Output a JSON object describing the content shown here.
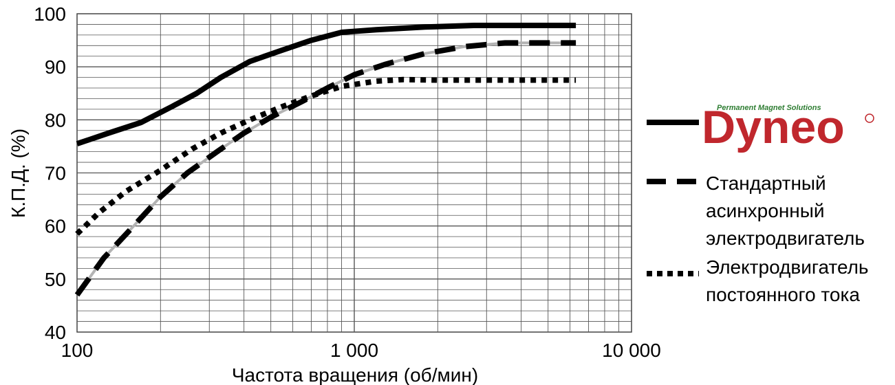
{
  "chart_data": {
    "type": "line",
    "xlabel": "Частота вращения (об/мин)",
    "ylabel": "К.П.Д. (%)",
    "x_scale": "log",
    "xlim": [
      100,
      10000
    ],
    "ylim": [
      40,
      100
    ],
    "x_ticks": [
      {
        "value": 100,
        "label": "100"
      },
      {
        "value": 1000,
        "label": "1 000"
      },
      {
        "value": 10000,
        "label": "10 000"
      }
    ],
    "y_ticks": [
      {
        "value": 40,
        "label": "40"
      },
      {
        "value": 50,
        "label": "50"
      },
      {
        "value": 60,
        "label": "60"
      },
      {
        "value": 70,
        "label": "70"
      },
      {
        "value": 80,
        "label": "80"
      },
      {
        "value": 90,
        "label": "90"
      },
      {
        "value": 100,
        "label": "100"
      }
    ],
    "grid": true,
    "legend_position": "right",
    "series": [
      {
        "name": "Dyneo",
        "style": "solid",
        "color": "#000000",
        "points": [
          [
            100,
            75.5
          ],
          [
            130,
            77.5
          ],
          [
            170,
            79.5
          ],
          [
            220,
            82.5
          ],
          [
            270,
            85
          ],
          [
            330,
            88
          ],
          [
            420,
            91
          ],
          [
            540,
            93
          ],
          [
            700,
            95
          ],
          [
            900,
            96.5
          ],
          [
            1200,
            97
          ],
          [
            1800,
            97.5
          ],
          [
            2700,
            97.8
          ],
          [
            6300,
            97.8
          ]
        ]
      },
      {
        "name": "Стандартный асинхронный электродвигатель",
        "style": "dashed",
        "color": "#000000",
        "points": [
          [
            100,
            47
          ],
          [
            125,
            54
          ],
          [
            160,
            60
          ],
          [
            200,
            65.5
          ],
          [
            250,
            70
          ],
          [
            320,
            74
          ],
          [
            400,
            77.5
          ],
          [
            500,
            80.5
          ],
          [
            650,
            83.5
          ],
          [
            800,
            86
          ],
          [
            1000,
            88.5
          ],
          [
            1300,
            90.5
          ],
          [
            1800,
            92.5
          ],
          [
            2500,
            93.8
          ],
          [
            3500,
            94.5
          ],
          [
            6300,
            94.5
          ]
        ]
      },
      {
        "name": "Электродвигатель постоянного тока",
        "style": "dotted",
        "color": "#000000",
        "points": [
          [
            100,
            58.5
          ],
          [
            120,
            62.5
          ],
          [
            150,
            66.5
          ],
          [
            200,
            70.5
          ],
          [
            260,
            74.5
          ],
          [
            330,
            77.5
          ],
          [
            420,
            80
          ],
          [
            550,
            82.5
          ],
          [
            700,
            84.5
          ],
          [
            900,
            86.3
          ],
          [
            1200,
            87.3
          ],
          [
            1500,
            87.6
          ],
          [
            2000,
            87.5
          ],
          [
            6300,
            87.5
          ]
        ]
      }
    ]
  },
  "legend": {
    "logo": {
      "brand": "Dyneo",
      "tagline": "Permanent Magnet Solutions",
      "mark": "®",
      "color": "#c0272d"
    },
    "entries": [
      {
        "id": "dyneo",
        "style": "solid",
        "lines": []
      },
      {
        "id": "standard",
        "style": "dashed",
        "lines": [
          "Стандартный",
          "асинхронный",
          "электродвигатель"
        ]
      },
      {
        "id": "dc",
        "style": "dotted",
        "lines": [
          "Электродвигатель",
          "постоянного тока"
        ]
      }
    ]
  }
}
